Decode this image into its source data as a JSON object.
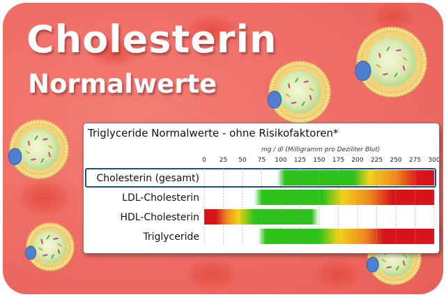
{
  "header": {
    "title": "Cholesterin",
    "subtitle": "Normalwerte"
  },
  "colors": {
    "background": "#ef6f67",
    "green": "#2fc21a",
    "yellow": "#f1d21c",
    "orange": "#ee8a1e",
    "red": "#d8141b",
    "highlight_border": "#1b4e8f"
  },
  "chart_data": {
    "type": "table",
    "title": "Triglyceride Normalwerte - ohne Risikofaktoren*",
    "unit_label": "mg / dl (Milligramm pro Deziliter Blut)",
    "xlim": [
      0,
      300
    ],
    "ticks": [
      0,
      25,
      50,
      75,
      100,
      125,
      150,
      175,
      200,
      225,
      250,
      275,
      300
    ],
    "tick_labels": [
      "0",
      "25",
      "50",
      "75",
      "100",
      "125",
      "150",
      "175",
      "200",
      "225",
      "250",
      "275",
      "300"
    ],
    "grid": true,
    "highlighted_row": "Cholesterin (gesamt)",
    "rows": [
      {
        "label": "Cholesterin (gesamt)",
        "range": [
          95,
          300
        ],
        "stops": [
          [
            95,
            "green",
            0
          ],
          [
            105,
            "green",
            1
          ],
          [
            195,
            "green",
            1
          ],
          [
            215,
            "yellow",
            1
          ],
          [
            250,
            "orange",
            1
          ],
          [
            280,
            "red",
            1
          ],
          [
            300,
            "red",
            1
          ]
        ]
      },
      {
        "label": "LDL-Cholesterin",
        "range": [
          65,
          300
        ],
        "stops": [
          [
            65,
            "green",
            0
          ],
          [
            75,
            "green",
            1
          ],
          [
            155,
            "green",
            1
          ],
          [
            180,
            "yellow",
            1
          ],
          [
            215,
            "orange",
            1
          ],
          [
            245,
            "red",
            1
          ],
          [
            300,
            "red",
            1
          ]
        ]
      },
      {
        "label": "HDL-Cholesterin",
        "range": [
          0,
          150
        ],
        "stops": [
          [
            0,
            "red",
            1
          ],
          [
            15,
            "red",
            1
          ],
          [
            30,
            "orange",
            1
          ],
          [
            45,
            "yellow",
            1
          ],
          [
            65,
            "green",
            1
          ],
          [
            140,
            "green",
            1
          ],
          [
            150,
            "green",
            0
          ]
        ]
      },
      {
        "label": "Triglyceride",
        "range": [
          70,
          300
        ],
        "stops": [
          [
            70,
            "green",
            0
          ],
          [
            80,
            "green",
            1
          ],
          [
            150,
            "green",
            1
          ],
          [
            175,
            "yellow",
            1
          ],
          [
            210,
            "orange",
            1
          ],
          [
            235,
            "red",
            1
          ],
          [
            300,
            "red",
            1
          ]
        ]
      }
    ]
  }
}
